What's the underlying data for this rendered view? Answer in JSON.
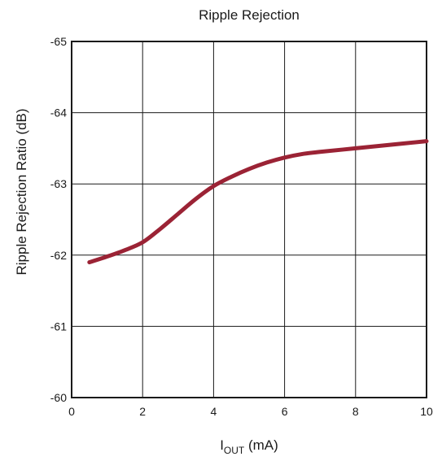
{
  "chart_data": {
    "type": "line",
    "title": "Ripple Rejection",
    "xlabel": {
      "main": "I",
      "sub": "OUT",
      "suffix": " (mA)"
    },
    "ylabel": "Ripple Rejection Ratio (dB)",
    "xlim": [
      0,
      10
    ],
    "ylim": [
      -60,
      -65
    ],
    "y_axis_inverted": true,
    "xticks": [
      0,
      2,
      4,
      6,
      8,
      10
    ],
    "xtick_labels": [
      "0",
      "2",
      "4",
      "6",
      "8",
      "10"
    ],
    "yticks": [
      -65,
      -64,
      -63,
      -62,
      -61,
      -60
    ],
    "ytick_labels": [
      "-65",
      "-64",
      "-63",
      "-62",
      "-61",
      "-60"
    ],
    "grid": true,
    "series": [
      {
        "color": "#9b2335",
        "x": [
          0.5,
          1.0,
          1.5,
          2.0,
          2.5,
          3.0,
          3.5,
          4.0,
          4.5,
          5.0,
          5.5,
          6.0,
          6.5,
          7.0,
          8.0,
          9.0,
          10.0
        ],
        "y": [
          -61.9,
          -61.98,
          -62.07,
          -62.18,
          -62.37,
          -62.58,
          -62.79,
          -62.97,
          -63.1,
          -63.21,
          -63.3,
          -63.37,
          -63.42,
          -63.45,
          -63.5,
          -63.55,
          -63.6
        ]
      }
    ]
  }
}
